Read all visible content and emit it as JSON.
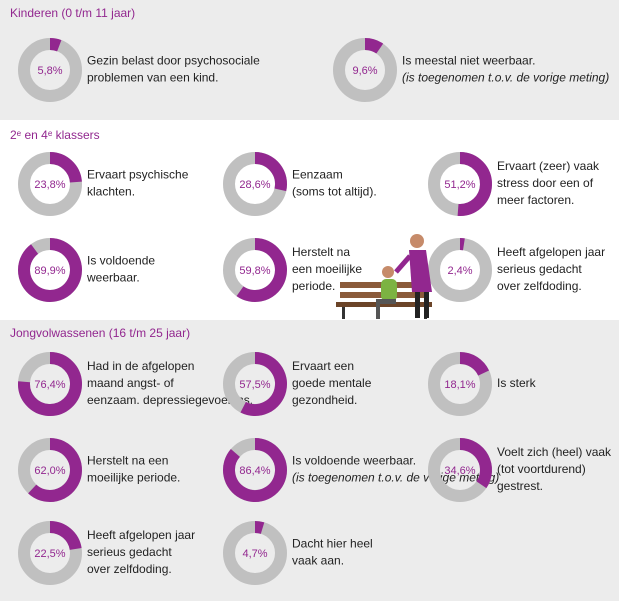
{
  "sections": [
    {
      "title": "Kinderen (0 t/m 11 jaar)",
      "items": [
        {
          "value": 5.8,
          "value_label": "5,8%",
          "lines": [
            "Gezin belast door psychosociale",
            "problemen van een kind."
          ]
        },
        {
          "value": 9.6,
          "value_label": "9,6%",
          "lines": [
            "Is meestal niet weerbaar."
          ],
          "note": "(is toegenomen t.o.v. de vorige meting)"
        }
      ]
    },
    {
      "title": "2ᵉ en 4ᵉ klassers",
      "items": [
        {
          "value": 23.8,
          "value_label": "23,8%",
          "lines": [
            "Ervaart psychische",
            "klachten."
          ]
        },
        {
          "value": 28.6,
          "value_label": "28,6%",
          "lines": [
            "Eenzaam",
            "(soms tot altijd)."
          ]
        },
        {
          "value": 51.2,
          "value_label": "51,2%",
          "lines": [
            "Ervaart (zeer) vaak",
            "stress door een of",
            "meer factoren."
          ]
        },
        {
          "value": 89.9,
          "value_label": "89,9%",
          "lines": [
            "Is voldoende",
            "weerbaar."
          ]
        },
        {
          "value": 59.8,
          "value_label": "59,8%",
          "lines": [
            "Herstelt na",
            "een moeilijke",
            "periode."
          ]
        },
        {
          "value": 2.4,
          "value_label": "2,4%",
          "lines": [
            "Heeft afgelopen jaar",
            "serieus gedacht",
            "over zelfdoding."
          ]
        }
      ]
    },
    {
      "title": "Jongvolwassenen (16 t/m 25 jaar)",
      "items": [
        {
          "value": 76.4,
          "value_label": "76,4%",
          "lines": [
            "Had in de afgelopen",
            "maand angst- of",
            "eenzaam. depressiegevoelens."
          ]
        },
        {
          "value": 57.5,
          "value_label": "57,5%",
          "lines": [
            "Ervaart een",
            "goede mentale",
            "gezondheid."
          ]
        },
        {
          "value": 18.1,
          "value_label": "18,1%",
          "lines": [
            "Is sterk"
          ]
        },
        {
          "value": 62.0,
          "value_label": "62,0%",
          "lines": [
            "Herstelt na een",
            "moeilijke periode."
          ]
        },
        {
          "value": 86.4,
          "value_label": "86,4%",
          "lines": [
            "Is voldoende weerbaar."
          ],
          "note": "(is toegenomen t.o.v. de vorige meting)"
        },
        {
          "value": 34.6,
          "value_label": "34,6%",
          "lines": [
            "Voelt zich (heel) vaak",
            "(tot voortdurend)",
            "gestrest."
          ]
        },
        {
          "value": 22.5,
          "value_label": "22,5%",
          "lines": [
            "Heeft afgelopen jaar",
            "serieus gedacht",
            "over zelfdoding."
          ]
        },
        {
          "value": 4.7,
          "value_label": "4,7%",
          "lines": [
            "Dacht hier heel",
            "vaak aan."
          ]
        }
      ]
    }
  ]
}
